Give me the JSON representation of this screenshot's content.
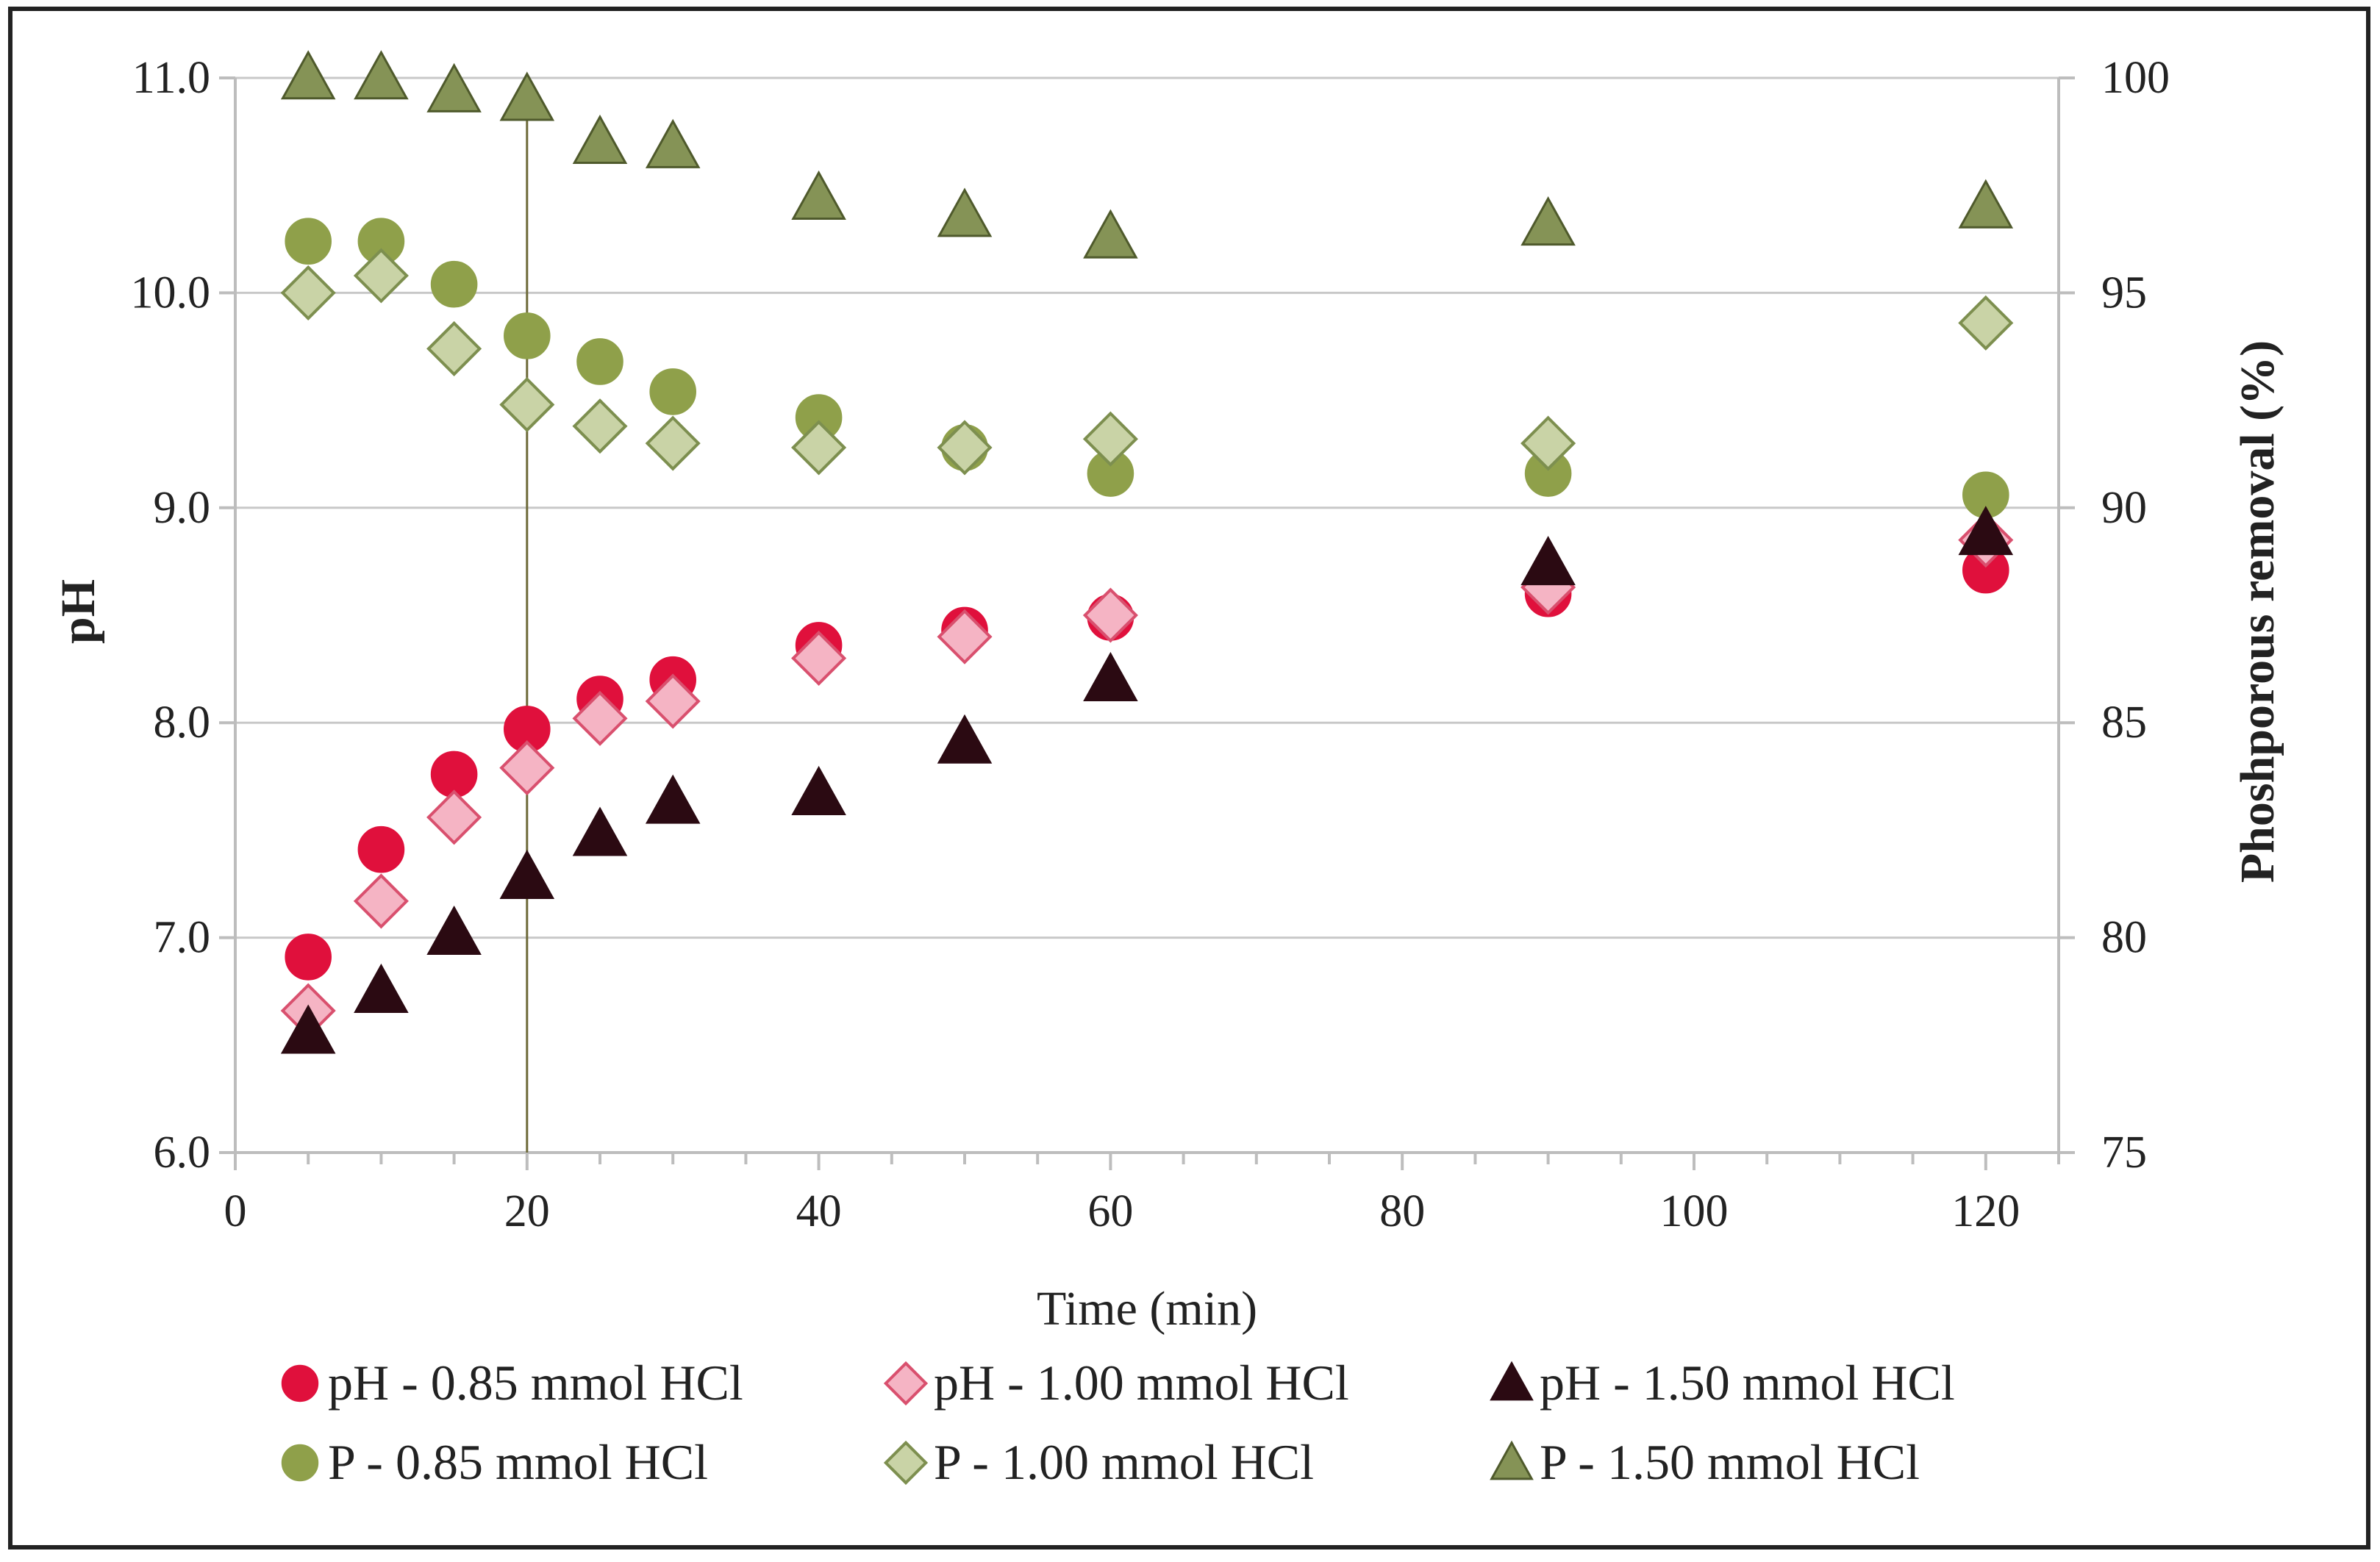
{
  "chart_data": {
    "type": "scatter",
    "title": "",
    "xlabel": "Time (min)",
    "ylabel": "pH",
    "y2label": "Phoshporous removal (%)",
    "xlim": [
      0,
      125
    ],
    "ylim": [
      6.0,
      11.0
    ],
    "y2lim": [
      75,
      100
    ],
    "x_ticks": [
      0,
      20,
      40,
      60,
      80,
      100,
      120
    ],
    "x_ticks_labels": [
      "0",
      "20",
      "40",
      "60",
      "80",
      "100",
      "120"
    ],
    "y_ticks": [
      6,
      7,
      8,
      9,
      10,
      11
    ],
    "y_ticks_labels": [
      "6.0",
      "7.0",
      "8.0",
      "9.0",
      "10.0",
      "11.0"
    ],
    "y2_ticks": [
      75,
      80,
      85,
      90,
      95,
      100
    ],
    "y2_ticks_labels": [
      "75",
      "80",
      "85",
      "90",
      "95",
      "100"
    ],
    "grid": true,
    "vertical_marker_x": 20,
    "series": [
      {
        "name": "pH - 0.85 mmol HCl",
        "axis": "left",
        "marker": "circle",
        "color": "#e0103c",
        "x": [
          5,
          10,
          15,
          20,
          25,
          30,
          40,
          50,
          60,
          90,
          120
        ],
        "y": [
          6.91,
          7.41,
          7.76,
          7.97,
          8.11,
          8.2,
          8.36,
          8.43,
          8.49,
          8.6,
          8.71
        ]
      },
      {
        "name": "pH - 1.00 mmol HCl",
        "axis": "left",
        "marker": "diamond",
        "color": "#f5b4c4",
        "stroke": "#d9506e",
        "x": [
          5,
          10,
          15,
          20,
          25,
          30,
          40,
          50,
          60,
          90,
          120
        ],
        "y": [
          6.66,
          7.17,
          7.56,
          7.79,
          8.02,
          8.1,
          8.3,
          8.4,
          8.5,
          8.63,
          8.85
        ]
      },
      {
        "name": "pH - 1.50 mmol HCl",
        "axis": "left",
        "marker": "triangle",
        "color": "#2b0a12",
        "x": [
          5,
          10,
          15,
          20,
          25,
          30,
          40,
          50,
          60,
          90,
          120
        ],
        "y": [
          6.56,
          6.75,
          7.02,
          7.28,
          7.48,
          7.63,
          7.67,
          7.91,
          8.2,
          8.74,
          8.88
        ]
      },
      {
        "name": "P - 0.85 mmol HCl",
        "axis": "right",
        "marker": "circle",
        "color": "#8fa04a",
        "x": [
          5,
          10,
          15,
          20,
          25,
          30,
          40,
          50,
          60,
          90,
          120
        ],
        "y": [
          96.2,
          96.2,
          95.2,
          94.0,
          93.4,
          92.7,
          92.1,
          91.4,
          90.8,
          90.8,
          90.3
        ]
      },
      {
        "name": "P - 1.00 mmol HCl",
        "axis": "right",
        "marker": "diamond",
        "color": "#c9d3a6",
        "stroke": "#7d8f4f",
        "x": [
          5,
          10,
          15,
          20,
          25,
          30,
          40,
          50,
          60,
          90,
          120
        ],
        "y": [
          95.0,
          95.4,
          93.7,
          92.4,
          91.9,
          91.5,
          91.4,
          91.4,
          91.6,
          91.5,
          94.3
        ]
      },
      {
        "name": "P - 1.50 mmol HCl",
        "axis": "right",
        "marker": "triangle",
        "color": "#859356",
        "stroke": "#4f5a2c",
        "x": [
          5,
          10,
          15,
          20,
          25,
          30,
          40,
          50,
          60,
          90,
          120
        ],
        "y": [
          100.0,
          100.0,
          99.7,
          99.5,
          98.5,
          98.4,
          97.2,
          96.8,
          96.3,
          96.6,
          97.0
        ]
      }
    ],
    "legend": {
      "placement": "bottom"
    }
  }
}
